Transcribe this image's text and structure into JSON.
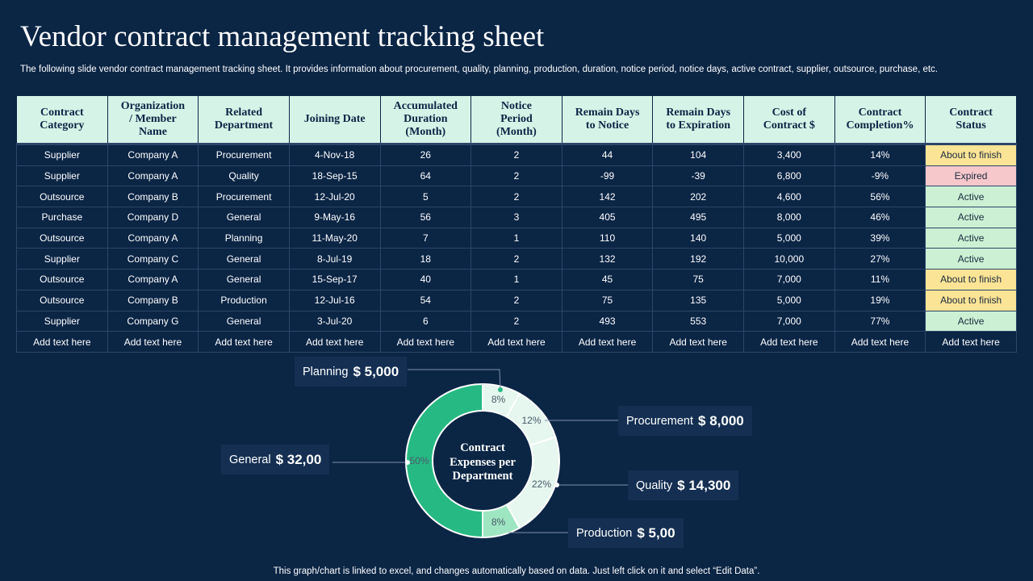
{
  "title": "Vendor contract management tracking sheet",
  "subtitle": "The following slide vendor contract management tracking sheet. It provides information about procurement, quality, planning, production, duration, notice period, notice days, active  contract, supplier, outsource, purchase, etc.",
  "table": {
    "headers": [
      [
        "Contract",
        "Category"
      ],
      [
        "Organization",
        "/ Member",
        "Name"
      ],
      [
        "Related",
        "Department"
      ],
      [
        "Joining Date"
      ],
      [
        "Accumulated",
        "Duration",
        "(Month)"
      ],
      [
        "Notice",
        "Period",
        "(Month)"
      ],
      [
        "Remain Days",
        "to Notice"
      ],
      [
        "Remain Days",
        "to Expiration"
      ],
      [
        "Cost of",
        "Contract $"
      ],
      [
        "Contract",
        "Completion%"
      ],
      [
        "Contract",
        "Status"
      ]
    ],
    "rows": [
      [
        "Supplier",
        "Company A",
        "Procurement",
        "4-Nov-18",
        "26",
        "2",
        "44",
        "104",
        "3,400",
        "14%",
        "About to finish"
      ],
      [
        "Supplier",
        "Company A",
        "Quality",
        "18-Sep-15",
        "64",
        "2",
        "-99",
        "-39",
        "6,800",
        "-9%",
        "Expired"
      ],
      [
        "Outsource",
        "Company B",
        "Procurement",
        "12-Jul-20",
        "5",
        "2",
        "142",
        "202",
        "4,600",
        "56%",
        "Active"
      ],
      [
        "Purchase",
        "Company D",
        "General",
        "9-May-16",
        "56",
        "3",
        "405",
        "495",
        "8,000",
        "46%",
        "Active"
      ],
      [
        "Outsource",
        "Company A",
        "Planning",
        "11-May-20",
        "7",
        "1",
        "110",
        "140",
        "5,000",
        "39%",
        "Active"
      ],
      [
        "Supplier",
        "Company C",
        "General",
        "8-Jul-19",
        "18",
        "2",
        "132",
        "192",
        "10,000",
        "27%",
        "Active"
      ],
      [
        "Outsource",
        "Company A",
        "General",
        "15-Sep-17",
        "40",
        "1",
        "45",
        "75",
        "7,000",
        "11%",
        "About to finish"
      ],
      [
        "Outsource",
        "Company B",
        "Production",
        "12-Jul-16",
        "54",
        "2",
        "75",
        "135",
        "5,000",
        "19%",
        "About to finish"
      ],
      [
        "Supplier",
        "Company G",
        "General",
        "3-Jul-20",
        "6",
        "2",
        "493",
        "553",
        "7,000",
        "77%",
        "Active"
      ],
      [
        "Add text here",
        "Add text here",
        "Add text here",
        "Add text here",
        "Add text here",
        "Add text here",
        "Add text here",
        "Add text here",
        "Add text here",
        "Add text here",
        "Add text here"
      ]
    ],
    "status_colors": {
      "About to finish": "#fbe495",
      "Expired": "#f6c7cb",
      "Active": "#cbf0d3"
    }
  },
  "chart_data": {
    "type": "pie",
    "variant": "donut",
    "title": "Contract Expenses per Department",
    "title_lines": [
      "Contract",
      "Expenses per",
      "Department"
    ],
    "categories": [
      "Planning",
      "Procurement",
      "Quality",
      "Production",
      "General"
    ],
    "values": [
      8,
      12,
      22,
      8,
      50
    ],
    "labels": [
      "8%",
      "12%",
      "22%",
      "8%",
      "50%"
    ],
    "amounts": [
      "$ 5,000",
      "$ 8,000",
      "$ 14,300",
      "$ 5,00",
      "$ 32,00"
    ],
    "colors": [
      "#e6f7ef",
      "#e6f7ef",
      "#e6f7ef",
      "#9ee6c1",
      "#26b983"
    ]
  },
  "footer": "This graph/chart is linked to excel,  and changes automatically based on data. Just left click on it and select “Edit Data”."
}
